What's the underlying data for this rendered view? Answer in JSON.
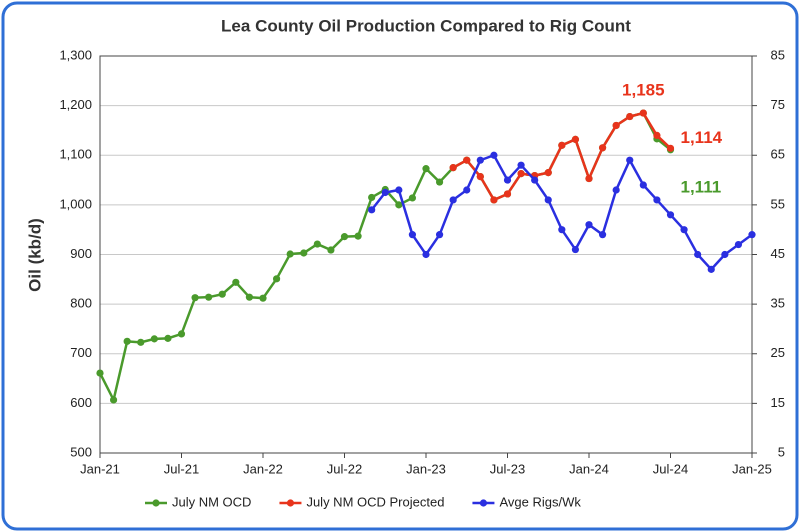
{
  "chart_data": {
    "type": "line",
    "title": "Lea County Oil Production Compared to Rig Count",
    "y_label": "Oil (kb/d)",
    "categories": [
      "Jan-21",
      null,
      null,
      null,
      null,
      null,
      "Jul-21",
      null,
      null,
      null,
      null,
      null,
      "Jan-22",
      null,
      null,
      null,
      null,
      null,
      "Jul-22",
      null,
      null,
      null,
      null,
      null,
      "Jan-23",
      null,
      null,
      null,
      null,
      null,
      "Jul-23",
      null,
      null,
      null,
      null,
      null,
      "Jan-24",
      null,
      null,
      null,
      null,
      null,
      "Jul-24",
      null,
      null,
      null,
      null,
      null,
      "Jan-25"
    ],
    "ylim": [
      500,
      1300
    ],
    "yticks": [
      500,
      600,
      700,
      800,
      900,
      {
        "value": 1000,
        "label": "1,000"
      },
      {
        "value": 1100,
        "label": "1,100"
      },
      {
        "value": 1200,
        "label": "1,200"
      },
      {
        "value": 1300,
        "label": "1,300"
      }
    ],
    "y2lim": [
      5,
      85
    ],
    "y2ticks": [
      5,
      15,
      25,
      35,
      45,
      55,
      65,
      75,
      85
    ],
    "grid": true,
    "legend": "bottom",
    "series": [
      {
        "name": "July NM OCD",
        "color": "#4a9a2c",
        "values": [
          661,
          607,
          725,
          723,
          730,
          731,
          740,
          813,
          814,
          820,
          844,
          814,
          812,
          851,
          901,
          903,
          921,
          909,
          936,
          937,
          1015,
          1031,
          1000,
          1014,
          1073,
          1046,
          1075,
          1090,
          1057,
          1010,
          1022,
          1063,
          1059,
          1065,
          1120,
          1132,
          1053,
          1115,
          1160,
          1178,
          1185,
          1133,
          1111,
          null,
          null,
          null,
          null,
          null,
          null
        ],
        "value_labels": [
          null,
          null,
          null,
          null,
          null,
          null,
          null,
          null,
          null,
          null,
          null,
          null,
          null,
          null,
          null,
          null,
          null,
          null,
          null,
          null,
          null,
          null,
          null,
          null,
          null,
          null,
          null,
          null,
          null,
          null,
          null,
          null,
          null,
          null,
          null,
          null,
          null,
          null,
          null,
          null,
          null,
          null,
          "1,111",
          null,
          null,
          null,
          null,
          null,
          null
        ]
      },
      {
        "name": "July NM OCD Projected",
        "color": "#e8341c",
        "values": [
          null,
          null,
          null,
          null,
          null,
          null,
          null,
          null,
          null,
          null,
          null,
          null,
          null,
          null,
          null,
          null,
          null,
          null,
          null,
          null,
          null,
          null,
          null,
          null,
          null,
          null,
          1075,
          1090,
          1057,
          1010,
          1022,
          1063,
          1059,
          1065,
          1120,
          1132,
          1053,
          1115,
          1160,
          1178,
          1185,
          1140,
          1114,
          null,
          null,
          null,
          null,
          null,
          null
        ],
        "value_labels": [
          null,
          null,
          null,
          null,
          null,
          null,
          null,
          null,
          null,
          null,
          null,
          null,
          null,
          null,
          null,
          null,
          null,
          null,
          null,
          null,
          null,
          null,
          null,
          null,
          null,
          null,
          null,
          null,
          null,
          null,
          null,
          null,
          null,
          null,
          null,
          null,
          null,
          null,
          null,
          null,
          "1,185",
          null,
          "1,114",
          null,
          null,
          null,
          null,
          null,
          null
        ]
      },
      {
        "name": "Avge Rigs/Wk",
        "color": "#2a2fe0",
        "axis": "y2",
        "values": [
          null,
          null,
          null,
          null,
          null,
          null,
          null,
          null,
          null,
          null,
          null,
          null,
          null,
          null,
          null,
          null,
          null,
          null,
          null,
          null,
          54,
          57.5,
          58,
          49,
          45,
          49,
          56,
          58,
          64,
          65,
          60,
          63,
          60,
          56,
          50,
          46,
          51,
          49,
          58,
          64,
          59,
          56,
          53,
          50,
          45,
          42,
          45,
          47,
          49
        ]
      }
    ]
  }
}
